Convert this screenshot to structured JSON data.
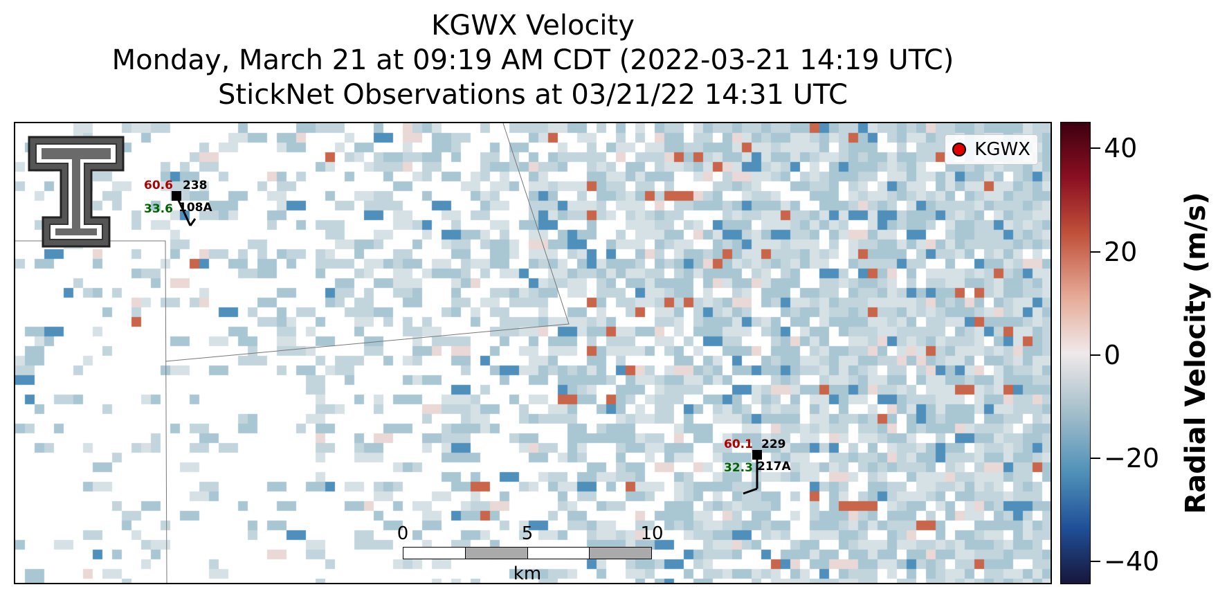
{
  "title": {
    "line1": "KGWX Velocity",
    "line2": "Monday, March 21 at 09:19 AM CDT (2022-03-21 14:19 UTC)",
    "line3": "StickNet Observations at 03/21/22 14:31 UTC"
  },
  "legend": {
    "label": "KGWX",
    "marker_color": "#e00000"
  },
  "stations": [
    {
      "id": "108A",
      "temperature": "60.6",
      "dewpoint": "33.6",
      "direction": "238"
    },
    {
      "id": "217A",
      "temperature": "60.1",
      "dewpoint": "32.3",
      "direction": "229"
    }
  ],
  "scale_bar": {
    "ticks": [
      "0",
      "5",
      "10"
    ],
    "unit": "km"
  },
  "colorbar": {
    "title": "Radial Velocity (m/s)",
    "ticks": [
      "40",
      "20",
      "0",
      "−20",
      "−40"
    ]
  },
  "colors": {
    "temperature": "#b00000",
    "dewpoint": "#006400"
  },
  "icons": {
    "logo": "texas-tech-double-t-logo"
  }
}
